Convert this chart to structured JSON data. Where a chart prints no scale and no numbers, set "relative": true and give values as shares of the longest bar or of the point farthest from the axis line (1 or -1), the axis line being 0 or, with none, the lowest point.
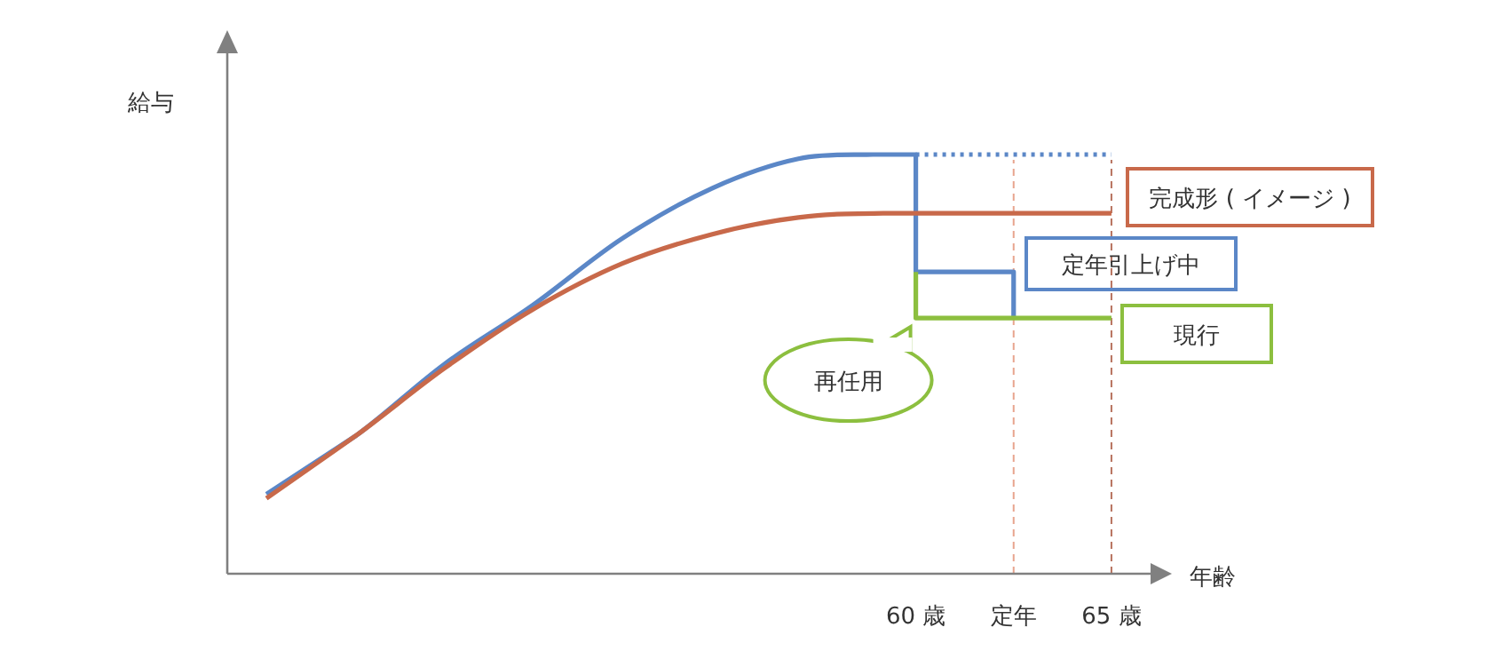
{
  "chart_data": {
    "type": "line",
    "relative": true,
    "xlabel": "年齢",
    "ylabel": "給与",
    "xlim": [
      42.4,
      66.0
    ],
    "xticks": [
      {
        "value": 60,
        "label": "60 歳"
      },
      {
        "value": 62.5,
        "label": "定年"
      },
      {
        "value": 65,
        "label": "65 歳"
      }
    ],
    "tick_labels": "x",
    "series": [
      {
        "name": "定年引上げ中",
        "color": "#5b87c7",
        "x": [
          43.4,
          45.7,
          47.95,
          50.2,
          52.5,
          54.8,
          57.0,
          58.9,
          60,
          60,
          62.5,
          62.5
        ],
        "values": [
          0.19,
          0.33,
          0.5,
          0.64,
          0.8,
          0.92,
          0.99,
          1,
          1,
          0.72,
          0.72,
          0.61
        ]
      },
      {
        "color": "#5b87c7",
        "line_style": "dotted",
        "x": [
          60,
          65
        ],
        "values": [
          1,
          1
        ]
      },
      {
        "name": "完成形 ( イメージ )",
        "color": "#c8694a",
        "x": [
          43.4,
          45.7,
          47.95,
          50.2,
          52.5,
          54.8,
          57.0,
          59.3,
          65
        ],
        "values": [
          0.18,
          0.33,
          0.49,
          0.63,
          0.74,
          0.81,
          0.85,
          0.86,
          0.86
        ]
      },
      {
        "name": "現行",
        "color": "#8cbf3f",
        "x": [
          60,
          60,
          65
        ],
        "values": [
          0.72,
          0.61,
          0.61
        ]
      }
    ],
    "ref_lines": [
      {
        "axis": "x",
        "value": 62.5,
        "color": "#e8a58f",
        "line_style": "dashed"
      },
      {
        "axis": "x",
        "value": 65,
        "color": "#b8735f",
        "line_style": "dashed"
      }
    ],
    "annotations": [
      {
        "text": "再任用",
        "x": 60,
        "y": 0.61
      }
    ]
  }
}
